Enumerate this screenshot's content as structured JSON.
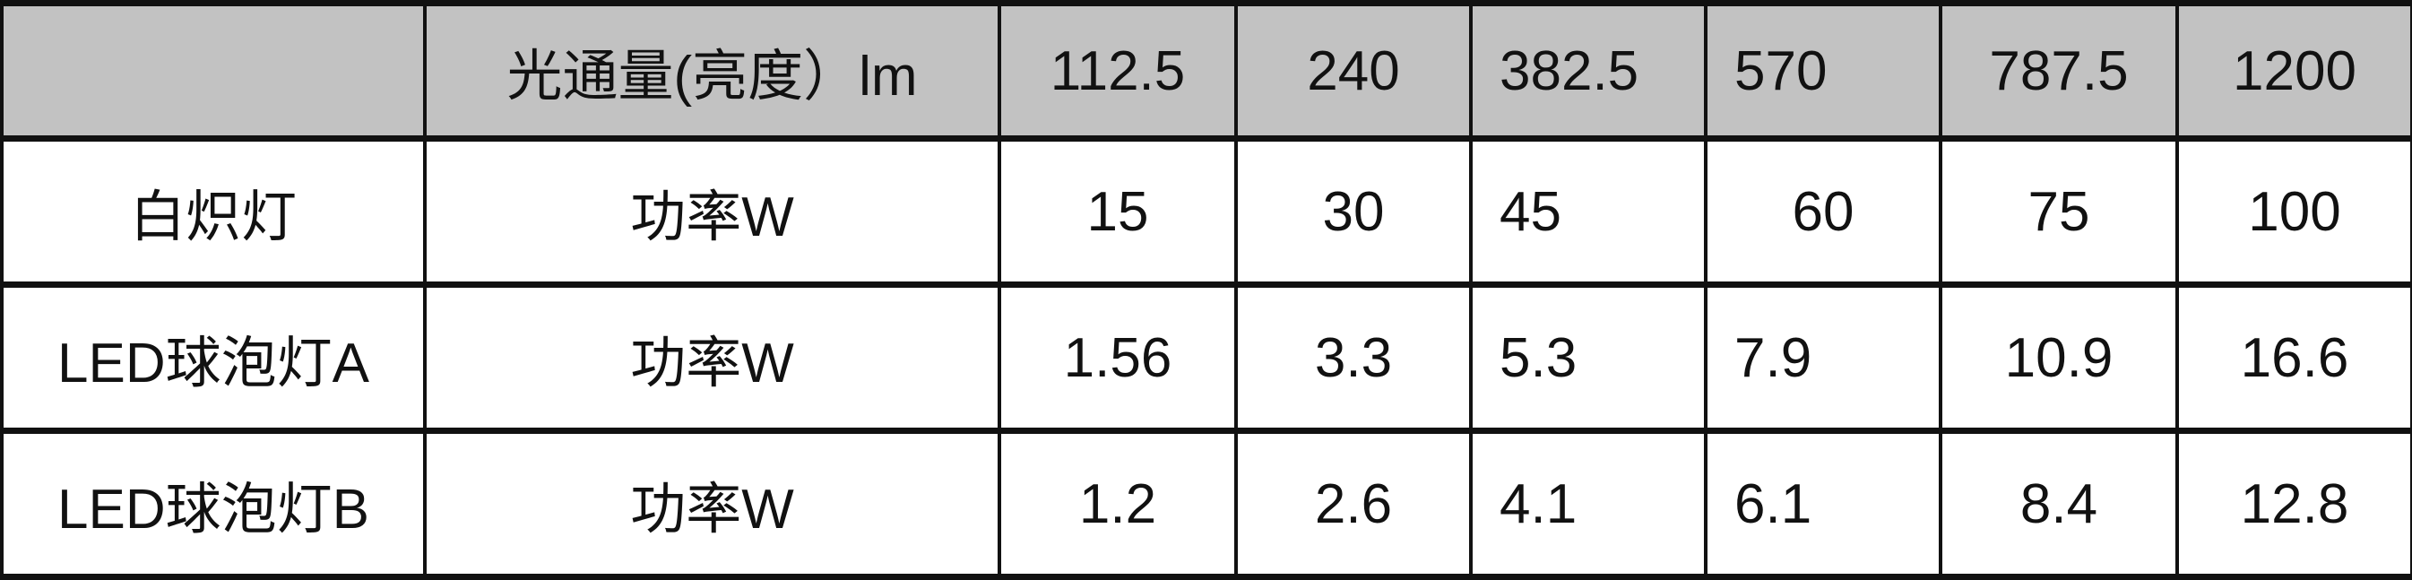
{
  "header": {
    "corner": "",
    "label": "光通量(亮度）lm",
    "values": [
      "112.5",
      "240",
      "382.5",
      "570",
      "787.5",
      "1200"
    ]
  },
  "rows": [
    {
      "name": "白炽灯",
      "unit": "功率W",
      "values": [
        "15",
        "30",
        "45",
        "60",
        "75",
        "100"
      ]
    },
    {
      "name": "LED球泡灯A",
      "unit": "功率W",
      "values": [
        "1.56",
        "3.3",
        "5.3",
        "7.9",
        "10.9",
        "16.6"
      ]
    },
    {
      "name": "LED球泡灯B",
      "unit": "功率W",
      "values": [
        "1.2",
        "2.6",
        "4.1",
        "6.1",
        "8.4",
        "12.8"
      ]
    }
  ],
  "colors": {
    "header_bg": "#c2c2c2",
    "border": "#111111"
  }
}
